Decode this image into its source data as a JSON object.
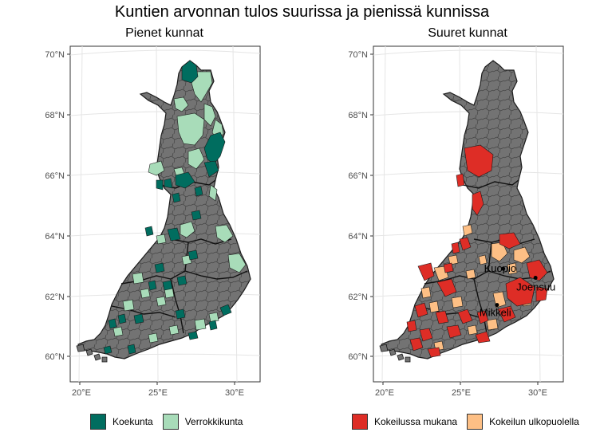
{
  "title": "Kuntien arvonnan tulos suurissa ja pienissä kunnissa",
  "colors": {
    "land": "#737373",
    "koekunta": "#006d5f",
    "verrokkikunta": "#a8dcb9",
    "mukana": "#de2d26",
    "ulkopuolella": "#fdbf85",
    "border": "#1a1a1a",
    "grid": "#e5e5e5"
  },
  "panels": [
    {
      "title": "Pienet kunnat",
      "legend": [
        {
          "label": "Koekunta",
          "color_key": "koekunta"
        },
        {
          "label": "Verrokkikunta",
          "color_key": "verrokkikunta"
        }
      ]
    },
    {
      "title": "Suuret kunnat",
      "legend": [
        {
          "label": "Kokeilussa mukana",
          "color_key": "mukana"
        },
        {
          "label": "Kokeilun ulkopuolella",
          "color_key": "ulkopuolella"
        }
      ]
    }
  ],
  "y_ticks": [
    "70°N",
    "68°N",
    "66°N",
    "64°N",
    "62°N",
    "60°N"
  ],
  "y_tick_values": [
    70,
    68,
    66,
    64,
    62,
    60
  ],
  "x_ticks": [
    "20°E",
    "25°E",
    "30°E"
  ],
  "x_tick_values": [
    20,
    25,
    30
  ],
  "cities": [
    {
      "name": "Kuopio",
      "lon": 27.7,
      "lat": 62.9
    },
    {
      "name": "Joensuu",
      "lon": 29.8,
      "lat": 62.6
    },
    {
      "name": "Mikkeli",
      "lon": 27.3,
      "lat": 61.7
    }
  ]
}
